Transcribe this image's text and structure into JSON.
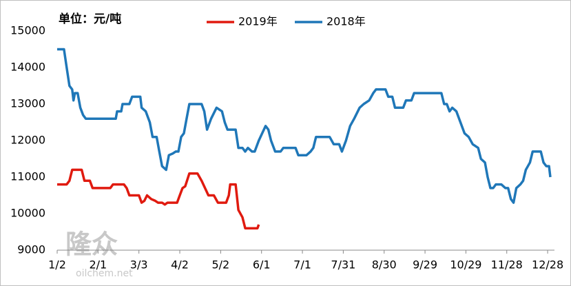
{
  "chart_data": {
    "type": "line",
    "annotation": "单位：元/吨",
    "watermark": [
      "隆众",
      "oilchem.net"
    ],
    "xlim": [
      0,
      365
    ],
    "xticks": [
      {
        "value": 0,
        "label": "1/2"
      },
      {
        "value": 30,
        "label": "2/1"
      },
      {
        "value": 60,
        "label": "3/3"
      },
      {
        "value": 90,
        "label": "4/2"
      },
      {
        "value": 120,
        "label": "5/2"
      },
      {
        "value": 150,
        "label": "6/1"
      },
      {
        "value": 180,
        "label": "7/1"
      },
      {
        "value": 210,
        "label": "7/31"
      },
      {
        "value": 240,
        "label": "8/30"
      },
      {
        "value": 270,
        "label": "9/29"
      },
      {
        "value": 300,
        "label": "10/29"
      },
      {
        "value": 330,
        "label": "11/28"
      },
      {
        "value": 360,
        "label": "12/28"
      }
    ],
    "ylim": [
      9000,
      15000
    ],
    "yticks": [
      9000,
      10000,
      11000,
      12000,
      13000,
      14000,
      15000
    ],
    "grid": false,
    "legend": "top",
    "series": [
      {
        "name": "2019年",
        "color": "#e01a0f",
        "x": [
          0,
          7,
          9,
          11,
          18,
          20,
          24,
          26,
          39,
          41,
          49,
          51,
          53,
          60,
          62,
          64,
          66,
          69,
          72,
          74,
          77,
          79,
          81,
          88,
          90,
          92,
          94,
          97,
          103,
          106,
          111,
          115,
          118,
          124,
          126,
          127,
          131,
          133,
          136,
          138,
          147,
          148
        ],
        "values": [
          10800,
          10800,
          10900,
          11200,
          11200,
          10900,
          10900,
          10700,
          10700,
          10800,
          10800,
          10700,
          10500,
          10500,
          10300,
          10350,
          10500,
          10400,
          10350,
          10300,
          10300,
          10250,
          10300,
          10300,
          10500,
          10700,
          10750,
          11100,
          11100,
          10900,
          10500,
          10500,
          10300,
          10300,
          10500,
          10800,
          10800,
          10100,
          9900,
          9600,
          9600,
          9700
        ]
      },
      {
        "name": "2018年",
        "color": "#1f77b8",
        "x": [
          0,
          5,
          7,
          9,
          11,
          12,
          13,
          15,
          17,
          19,
          21,
          43,
          44,
          47,
          48,
          53,
          55,
          61,
          62,
          65,
          68,
          70,
          73,
          75,
          77,
          80,
          82,
          85,
          87,
          89,
          91,
          93,
          95,
          97,
          106,
          108,
          110,
          113,
          117,
          121,
          123,
          125,
          131,
          133,
          136,
          138,
          140,
          143,
          145,
          148,
          153,
          155,
          157,
          160,
          164,
          166,
          175,
          177,
          183,
          186,
          188,
          190,
          200,
          203,
          207,
          209,
          212,
          215,
          218,
          222,
          225,
          229,
          232,
          234,
          241,
          243,
          246,
          248,
          254,
          256,
          260,
          262,
          282,
          284,
          286,
          288,
          290,
          293,
          296,
          299,
          302,
          305,
          309,
          311,
          314,
          316,
          318,
          320,
          322,
          326,
          329,
          331,
          333,
          335,
          337,
          340,
          342,
          344,
          347,
          349,
          355,
          357,
          359,
          361,
          362
        ],
        "values": [
          14500,
          14500,
          14000,
          13500,
          13400,
          13100,
          13300,
          13300,
          12900,
          12700,
          12600,
          12600,
          12800,
          12800,
          13000,
          13000,
          13200,
          13200,
          12900,
          12800,
          12500,
          12100,
          12100,
          11700,
          11300,
          11200,
          11600,
          11650,
          11700,
          11700,
          12100,
          12200,
          12600,
          13000,
          13000,
          12800,
          12300,
          12600,
          12900,
          12800,
          12500,
          12300,
          12300,
          11800,
          11800,
          11700,
          11800,
          11700,
          11700,
          12000,
          12400,
          12300,
          12000,
          11700,
          11700,
          11800,
          11800,
          11600,
          11600,
          11700,
          11800,
          12100,
          12100,
          11900,
          11900,
          11700,
          12000,
          12400,
          12600,
          12900,
          13000,
          13100,
          13300,
          13400,
          13400,
          13200,
          13200,
          12900,
          12900,
          13100,
          13100,
          13300,
          13300,
          13000,
          13000,
          12800,
          12900,
          12800,
          12500,
          12200,
          12100,
          11900,
          11800,
          11500,
          11400,
          11000,
          10700,
          10700,
          10800,
          10800,
          10700,
          10700,
          10400,
          10300,
          10700,
          10800,
          10900,
          11200,
          11400,
          11700,
          11700,
          11400,
          11300,
          11300,
          11000
        ]
      }
    ]
  }
}
